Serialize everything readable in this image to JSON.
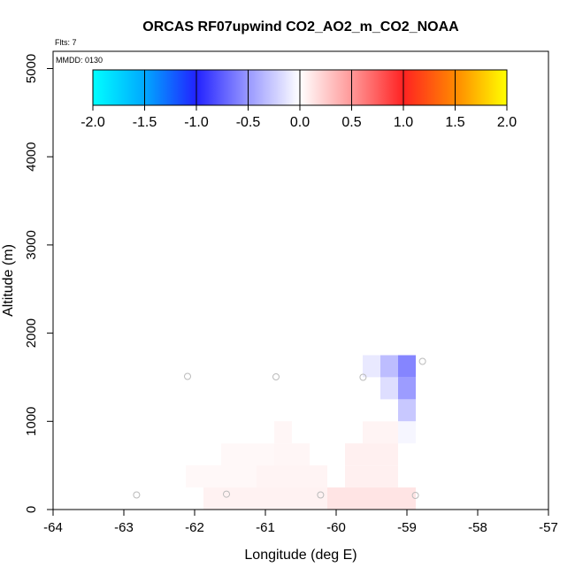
{
  "chart_data": {
    "type": "heatmap",
    "title": "ORCAS RF07upwind CO2_AO2_m_CO2_NOAA",
    "xlabel": "Longitude (deg E)",
    "ylabel": "Altitude (m)",
    "xlim": [
      -64,
      -57
    ],
    "ylim": [
      0,
      5200
    ],
    "x_ticks": [
      -64,
      -63,
      -62,
      -61,
      -60,
      -59,
      -58,
      -57
    ],
    "y_ticks": [
      0,
      1000,
      2000,
      3000,
      4000,
      5000
    ],
    "flts_label": "Flts: 7",
    "mmdd_label": "MMDD: 0130",
    "colorbar": {
      "ticks": [
        -2.0,
        -1.5,
        -1.0,
        -0.5,
        0.0,
        0.5,
        1.0,
        1.5,
        2.0
      ],
      "tick_labels": [
        "-2.0",
        "-1.5",
        "-1.0",
        "-0.5",
        "0.0",
        "0.5",
        "1.0",
        "1.5",
        "2.0"
      ],
      "range": [
        -2.0,
        2.0
      ],
      "colors": {
        "neg_extreme": "#00ffff",
        "neg_mid": "#2222ff",
        "zero": "#ffffff",
        "pos_mid": "#ff2222",
        "pos_high": "#ff8800",
        "pos_extreme": "#ffff00"
      }
    },
    "cell_size": {
      "lon": 0.25,
      "alt": 250
    },
    "cells": [
      {
        "lon": -59.5,
        "alt": 1500,
        "value": -0.1
      },
      {
        "lon": -59.25,
        "alt": 1500,
        "value": -0.3
      },
      {
        "lon": -59.0,
        "alt": 1500,
        "value": -0.55
      },
      {
        "lon": -59.25,
        "alt": 1250,
        "value": -0.15
      },
      {
        "lon": -59.0,
        "alt": 1250,
        "value": -0.45
      },
      {
        "lon": -59.0,
        "alt": 1000,
        "value": -0.25
      },
      {
        "lon": -59.0,
        "alt": 750,
        "value": -0.04
      },
      {
        "lon": -60.75,
        "alt": 750,
        "value": 0.04
      },
      {
        "lon": -59.5,
        "alt": 750,
        "value": 0.05
      },
      {
        "lon": -59.25,
        "alt": 750,
        "value": 0.05
      },
      {
        "lon": -61.5,
        "alt": 500,
        "value": 0.03
      },
      {
        "lon": -61.25,
        "alt": 500,
        "value": 0.03
      },
      {
        "lon": -61.0,
        "alt": 500,
        "value": 0.03
      },
      {
        "lon": -60.75,
        "alt": 500,
        "value": 0.04
      },
      {
        "lon": -60.5,
        "alt": 500,
        "value": 0.04
      },
      {
        "lon": -59.75,
        "alt": 500,
        "value": 0.07
      },
      {
        "lon": -59.5,
        "alt": 500,
        "value": 0.07
      },
      {
        "lon": -59.25,
        "alt": 500,
        "value": 0.07
      },
      {
        "lon": -62.0,
        "alt": 250,
        "value": 0.03
      },
      {
        "lon": -61.75,
        "alt": 250,
        "value": 0.03
      },
      {
        "lon": -61.5,
        "alt": 250,
        "value": 0.03
      },
      {
        "lon": -61.25,
        "alt": 250,
        "value": 0.03
      },
      {
        "lon": -61.0,
        "alt": 250,
        "value": 0.05
      },
      {
        "lon": -60.75,
        "alt": 250,
        "value": 0.05
      },
      {
        "lon": -60.5,
        "alt": 250,
        "value": 0.05
      },
      {
        "lon": -60.25,
        "alt": 250,
        "value": 0.05
      },
      {
        "lon": -59.75,
        "alt": 250,
        "value": 0.07
      },
      {
        "lon": -59.5,
        "alt": 250,
        "value": 0.07
      },
      {
        "lon": -59.25,
        "alt": 250,
        "value": 0.07
      },
      {
        "lon": -61.75,
        "alt": 0,
        "value": 0.06
      },
      {
        "lon": -61.5,
        "alt": 0,
        "value": 0.06
      },
      {
        "lon": -61.25,
        "alt": 0,
        "value": 0.06
      },
      {
        "lon": -61.0,
        "alt": 0,
        "value": 0.06
      },
      {
        "lon": -60.75,
        "alt": 0,
        "value": 0.06
      },
      {
        "lon": -60.5,
        "alt": 0,
        "value": 0.06
      },
      {
        "lon": -60.25,
        "alt": 0,
        "value": 0.06
      },
      {
        "lon": -60.0,
        "alt": 0,
        "value": 0.12
      },
      {
        "lon": -59.75,
        "alt": 0,
        "value": 0.12
      },
      {
        "lon": -59.5,
        "alt": 0,
        "value": 0.12
      },
      {
        "lon": -59.25,
        "alt": 0,
        "value": 0.12
      },
      {
        "lon": -59.0,
        "alt": 0,
        "value": 0.12
      }
    ],
    "points": [
      {
        "lon": -62.1,
        "alt": 1510
      },
      {
        "lon": -60.85,
        "alt": 1505
      },
      {
        "lon": -59.62,
        "alt": 1500
      },
      {
        "lon": -58.78,
        "alt": 1680
      },
      {
        "lon": -62.82,
        "alt": 165
      },
      {
        "lon": -61.55,
        "alt": 175
      },
      {
        "lon": -60.22,
        "alt": 165
      },
      {
        "lon": -58.88,
        "alt": 160
      }
    ]
  }
}
